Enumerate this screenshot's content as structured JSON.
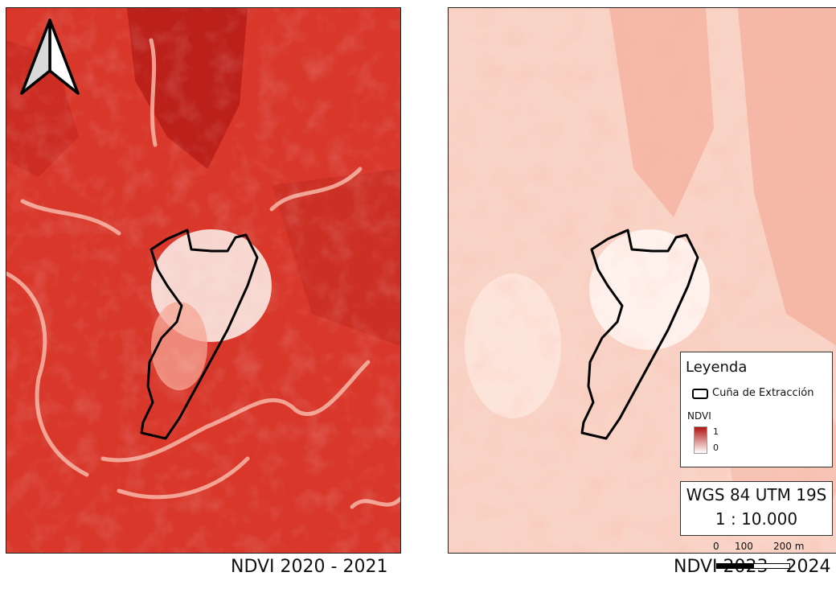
{
  "maps": {
    "left": {
      "caption": "NDVI 2020 - 2021",
      "palette": {
        "base": "#d8372a",
        "dark": "#b71c17",
        "light": "#f5a493",
        "bright": "#fbe8e2"
      }
    },
    "right": {
      "caption": "NDVI 2023 - 2024",
      "palette": {
        "base": "#f9d3c6",
        "dark": "#f29a84",
        "light": "#fde6dd",
        "bright": "#fff5f1"
      }
    }
  },
  "legend": {
    "title": "Leyenda",
    "polygon_label": "Cuña de Extracción",
    "ramp_title": "NDVI",
    "ramp_max": "1",
    "ramp_min": "0"
  },
  "crs": {
    "name": "WGS 84 UTM 19S",
    "scale": "1 : 10.000"
  },
  "scalebar": {
    "labels": [
      "0",
      "100",
      "200 m"
    ]
  },
  "icons": [
    "north-arrow-icon"
  ]
}
